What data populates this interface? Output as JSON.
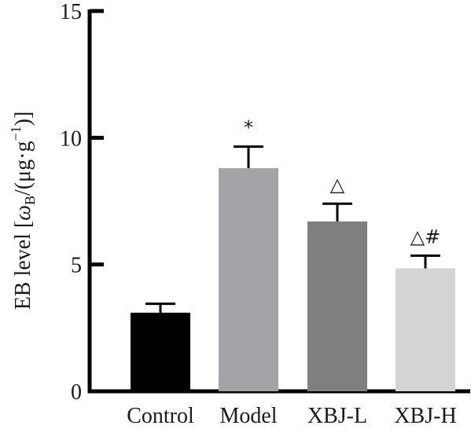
{
  "chart_data": {
    "type": "bar",
    "title": "",
    "xlabel": "",
    "ylabel": "EB level [ωB/(μg·g⁻¹)]",
    "ylabel_parts": {
      "prefix": "EB level [",
      "omega": "ω",
      "sub": "B",
      "mid": "/(μg·g",
      "sup": "−1",
      "suffix": ")]"
    },
    "ylim": [
      0,
      15
    ],
    "yticks": [
      "0",
      "5",
      "10",
      "15"
    ],
    "yticks_values": [
      0,
      5,
      10,
      15
    ],
    "grid": false,
    "legend": "none",
    "categories": [
      "Control",
      "Model",
      "XBJ-L",
      "XBJ-H"
    ],
    "values": [
      3.1,
      8.8,
      6.7,
      4.85
    ],
    "errors": [
      0.35,
      0.85,
      0.7,
      0.5
    ],
    "annotations": [
      "",
      "*",
      "△",
      "△#"
    ],
    "colors": [
      "#000000",
      "#a3a3a8",
      "#7f7f80",
      "#d4d4d4"
    ]
  }
}
